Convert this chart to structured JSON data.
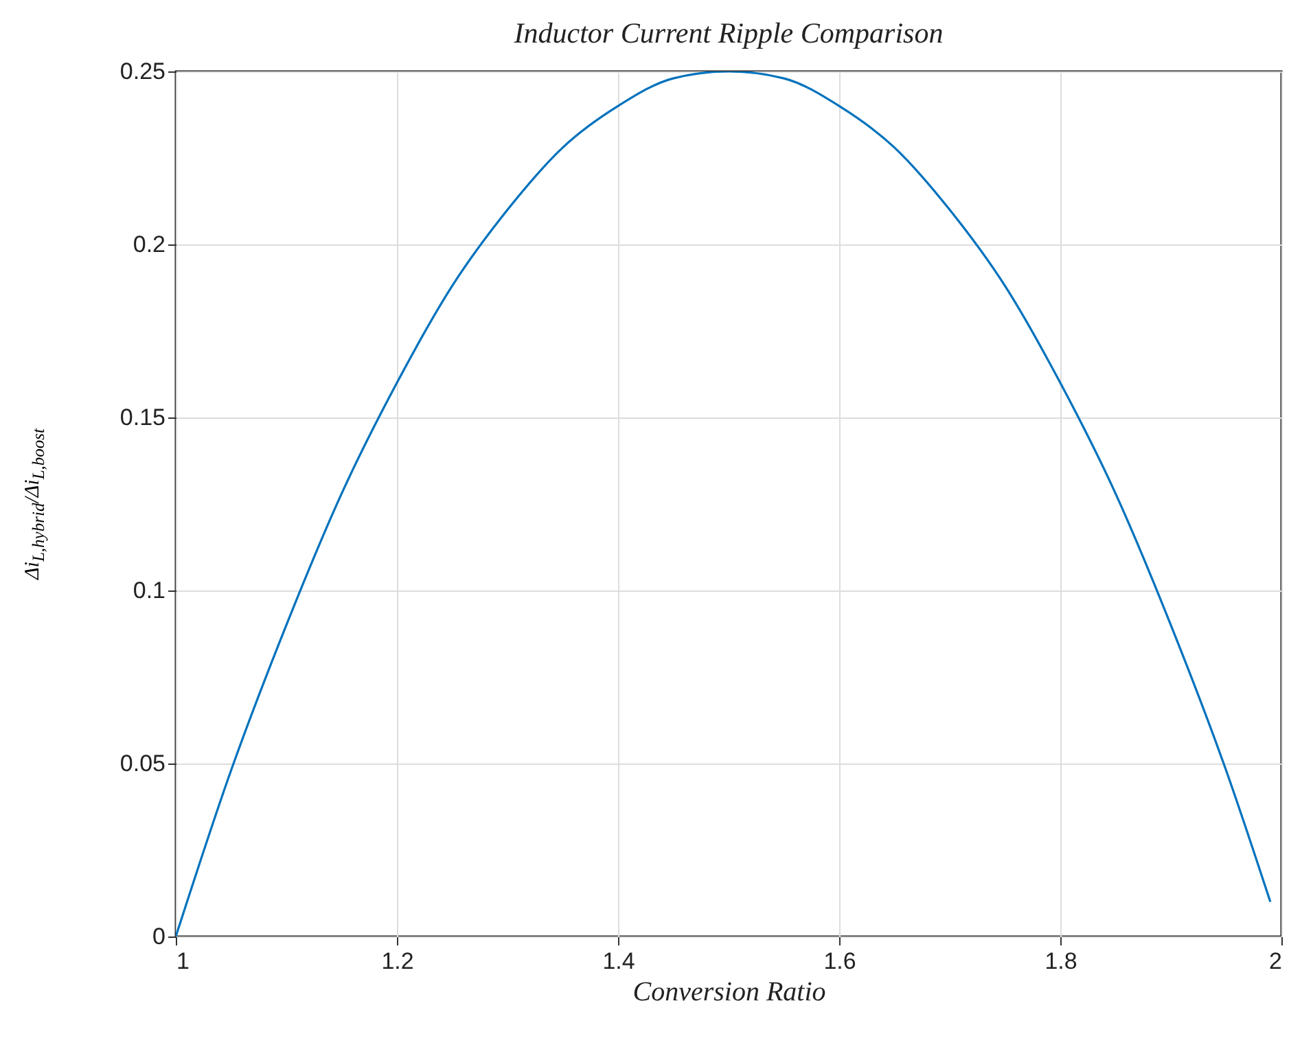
{
  "chart_data": {
    "type": "line",
    "title": "Inductor Current Ripple Comparison",
    "xlabel": "Conversion Ratio",
    "ylabel": "Δi$_{L,hybrid}$/Δi$_{L,boost}$",
    "x": [
      1,
      1.05,
      1.1,
      1.15,
      1.2,
      1.25,
      1.3,
      1.35,
      1.4,
      1.45,
      1.5,
      1.55,
      1.6,
      1.65,
      1.7,
      1.75,
      1.8,
      1.85,
      1.9,
      1.95,
      1.99
    ],
    "series": [
      {
        "color": "#0072bd",
        "values": [
          0,
          0.048,
          0.09,
          0.128,
          0.16,
          0.188,
          0.21,
          0.228,
          0.24,
          0.248,
          0.25,
          0.248,
          0.24,
          0.228,
          0.21,
          0.188,
          0.16,
          0.128,
          0.09,
          0.048,
          0.01
        ]
      }
    ],
    "xlim": [
      1,
      2
    ],
    "xticks": [
      1,
      1.2,
      1.4,
      1.6,
      1.8,
      2
    ],
    "ylim": [
      0,
      0.25
    ],
    "yticks": [
      0,
      0.05,
      0.1,
      0.15,
      0.2,
      0.25
    ],
    "grid": true,
    "marker": "none",
    "line_style": "solid"
  }
}
